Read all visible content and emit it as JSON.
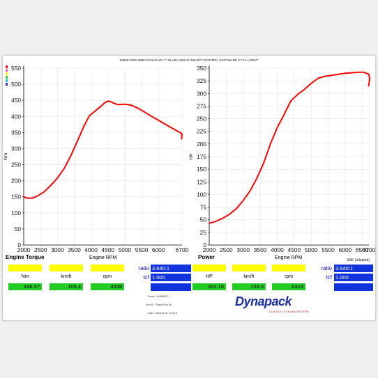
{
  "header": {
    "title": "09898-0002-0996-DYNAPACK™ 32 with P&DAG SMART CONTROL SOFTWARE V7.21 1336V7"
  },
  "left_panel": {
    "title": "Engine Torque",
    "axis_x": "Engine RPM",
    "axis_y": "Nm",
    "headers": [
      "Nm",
      "km/h",
      "rpm"
    ],
    "values": [
      "446.57",
      "105.4",
      "4438"
    ],
    "ratio_label": "ratio",
    "ratio_value": "3.640:1",
    "tcf_label": "tcf",
    "tcf_value": "1.000"
  },
  "right_panel": {
    "title": "Power",
    "axis_x": "Engine RPM",
    "axis_y": "HP",
    "headers": [
      "HP",
      "km/h",
      "rpm"
    ],
    "values": [
      "342.16",
      "154.3",
      "6318"
    ],
    "ratio_label": "ratio",
    "ratio_value": "3.640:1",
    "tcf_label": "tcf",
    "tcf_value": "1.000",
    "sae": "SAE (adapted)"
  },
  "meta": {
    "line1": "Pratm : UNIMATIC",
    "line2": "Run ID : Thank Run 09",
    "line3": "Date : 2018-11-22 12:08 H"
  },
  "logo": {
    "text": "Dynapack",
    "subtitle": "CHASSIS DYNAMOMETERS"
  },
  "colors": {
    "curve": "#ff0000",
    "grid": "#e6e6e6",
    "yellow": "#ffff00",
    "green": "#22cc22",
    "blue": "#1133dd"
  },
  "chart_data": [
    {
      "type": "line",
      "title": "Engine Torque",
      "xlabel": "Engine RPM",
      "ylabel": "Nm",
      "xlim": [
        2000,
        6700
      ],
      "ylim": [
        0,
        550
      ],
      "xticks": [
        2000,
        2500,
        3000,
        3500,
        4000,
        4500,
        5000,
        5500,
        6000,
        6700
      ],
      "yticks": [
        0,
        50,
        100,
        150,
        200,
        250,
        300,
        350,
        400,
        450,
        500,
        550
      ],
      "grid": true,
      "series": [
        {
          "x": [
            2000,
            2100,
            2250,
            2400,
            2600,
            2800,
            3000,
            3200,
            3400,
            3600,
            3800,
            3950,
            4100,
            4250,
            4400,
            4500,
            4600,
            4700,
            4800,
            5000,
            5200,
            5400,
            5600,
            5800,
            6000,
            6200,
            6400,
            6550,
            6650,
            6700,
            6690
          ],
          "y": [
            150,
            146,
            146,
            152,
            165,
            185,
            208,
            238,
            278,
            325,
            372,
            402,
            415,
            428,
            442,
            448,
            445,
            440,
            437,
            438,
            435,
            425,
            413,
            400,
            388,
            376,
            364,
            355,
            350,
            345,
            330
          ]
        }
      ]
    },
    {
      "type": "line",
      "title": "Power",
      "xlabel": "Engine RPM",
      "ylabel": "HP",
      "xlim": [
        2000,
        6700
      ],
      "ylim": [
        0,
        350
      ],
      "xticks": [
        2000,
        2500,
        3000,
        3500,
        4000,
        4500,
        5000,
        5500,
        6000,
        6500,
        6700
      ],
      "yticks": [
        0,
        25,
        50,
        75,
        100,
        125,
        150,
        175,
        200,
        225,
        250,
        275,
        300,
        325,
        350
      ],
      "grid": true,
      "series": [
        {
          "x": [
            2000,
            2200,
            2400,
            2600,
            2800,
            3000,
            3200,
            3400,
            3600,
            3800,
            4000,
            4200,
            4400,
            4600,
            4800,
            5000,
            5200,
            5400,
            5600,
            5800,
            6000,
            6200,
            6400,
            6550,
            6700,
            6720,
            6690
          ],
          "y": [
            43,
            47,
            53,
            61,
            72,
            88,
            107,
            132,
            162,
            200,
            232,
            258,
            285,
            298,
            308,
            320,
            330,
            334,
            336,
            338,
            340,
            341,
            342,
            342,
            338,
            328,
            315
          ]
        }
      ]
    }
  ]
}
